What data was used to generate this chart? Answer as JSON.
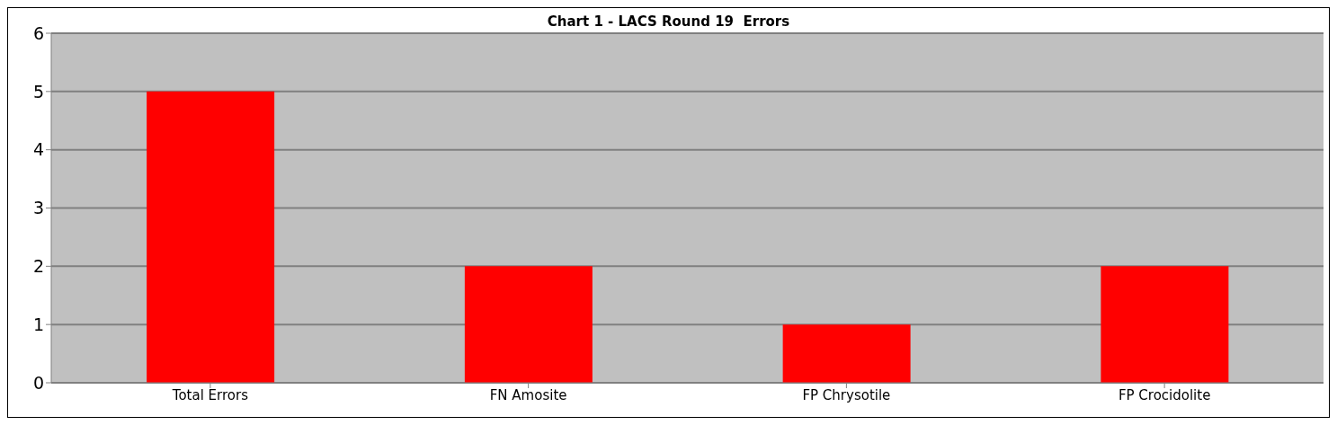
{
  "chart_data": {
    "type": "bar",
    "title": "Chart 1 - LACS Round 19  Errors",
    "categories": [
      "Total Errors",
      "FN Amosite",
      "FP Chrysotile",
      "FP Crocidolite"
    ],
    "values": [
      5,
      2,
      1,
      2
    ],
    "color": "#ff0000",
    "ylim": [
      0,
      6
    ],
    "yticks": [
      0,
      1,
      2,
      3,
      4,
      5,
      6
    ],
    "grid": "y",
    "legend": false
  }
}
